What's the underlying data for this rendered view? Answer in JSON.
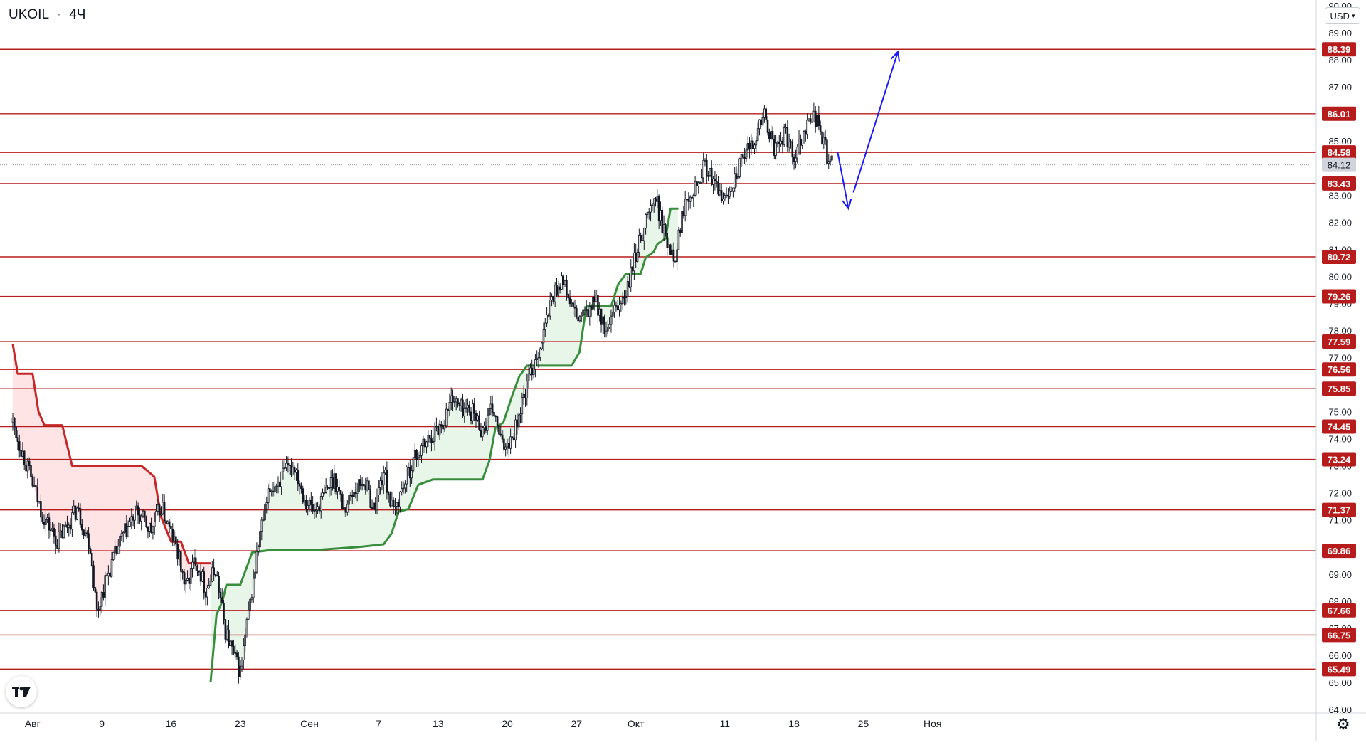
{
  "header": {
    "symbol": "UKOIL",
    "interval": "4Ч",
    "currency": "USD"
  },
  "icons": {
    "logo": "tradingview-logo-icon",
    "settings": "gear-icon",
    "currency_dropdown": "chevron-down-icon"
  },
  "colors": {
    "level_line": "#b71c1c",
    "level_badge": "#b71c1c",
    "supertrend_up": "#388e3c",
    "supertrend_down": "#c62828",
    "fill_up": "#e8f5e9",
    "fill_down": "#ffe4e6",
    "arrow": "#1a1aff",
    "candle": "#131722",
    "current_price_badge": "#d1d4dc"
  },
  "chart_data": {
    "type": "candlestick",
    "title": "UKOIL · 4Ч",
    "y_axis": {
      "range": [
        64.0,
        90.0
      ],
      "ticks": [
        "90.00",
        "89.00",
        "88.00",
        "87.00",
        "86.00",
        "85.00",
        "83.00",
        "82.00",
        "81.00",
        "80.00",
        "79.00",
        "78.00",
        "77.00",
        "76.00",
        "75.00",
        "74.00",
        "73.00",
        "72.00",
        "71.00",
        "70.00",
        "69.00",
        "68.00",
        "67.00",
        "66.00",
        "65.00",
        "64.00"
      ],
      "unit": "USD"
    },
    "x_axis": {
      "labels": [
        "Авг",
        "9",
        "16",
        "23",
        "Сен",
        "7",
        "13",
        "20",
        "27",
        "Окт",
        "11",
        "18",
        "25",
        "Ноя"
      ],
      "label_days": [
        2,
        9,
        16,
        23,
        30,
        37,
        43,
        50,
        57,
        63,
        72,
        79,
        86,
        93
      ]
    },
    "current_price": "84.12",
    "horizontal_levels": [
      "88.39",
      "86.01",
      "84.58",
      "83.43",
      "80.72",
      "79.26",
      "77.59",
      "76.56",
      "75.85",
      "74.45",
      "73.24",
      "71.37",
      "69.86",
      "67.66",
      "66.75",
      "65.49"
    ],
    "price_path": [
      [
        0.0,
        74.6
      ],
      [
        1.5,
        72.9
      ],
      [
        3.0,
        71.2
      ],
      [
        4.5,
        70.2
      ],
      [
        6.5,
        71.4
      ],
      [
        7.8,
        70.1
      ],
      [
        8.5,
        67.6
      ],
      [
        9.5,
        68.9
      ],
      [
        11.0,
        70.3
      ],
      [
        12.5,
        71.3
      ],
      [
        14.0,
        70.6
      ],
      [
        15.0,
        71.5
      ],
      [
        16.5,
        70.0
      ],
      [
        17.5,
        68.5
      ],
      [
        18.5,
        69.6
      ],
      [
        19.5,
        68.4
      ],
      [
        20.5,
        69.2
      ],
      [
        21.5,
        66.9
      ],
      [
        22.5,
        65.8
      ],
      [
        23.0,
        65.4
      ],
      [
        24.0,
        67.9
      ],
      [
        25.0,
        70.5
      ],
      [
        26.0,
        72.1
      ],
      [
        27.5,
        72.7
      ],
      [
        28.5,
        73.0
      ],
      [
        29.5,
        71.8
      ],
      [
        30.5,
        71.3
      ],
      [
        31.5,
        71.9
      ],
      [
        32.5,
        72.6
      ],
      [
        33.5,
        71.4
      ],
      [
        34.5,
        72.1
      ],
      [
        35.5,
        72.5
      ],
      [
        36.5,
        71.4
      ],
      [
        37.5,
        72.8
      ],
      [
        38.5,
        71.2
      ],
      [
        39.5,
        72.3
      ],
      [
        40.5,
        73.2
      ],
      [
        41.5,
        73.7
      ],
      [
        42.5,
        74.2
      ],
      [
        43.5,
        74.6
      ],
      [
        44.5,
        75.6
      ],
      [
        45.0,
        75.2
      ],
      [
        46.5,
        75.0
      ],
      [
        47.5,
        74.3
      ],
      [
        48.5,
        75.1
      ],
      [
        49.5,
        73.7
      ],
      [
        50.5,
        74.1
      ],
      [
        51.5,
        75.3
      ],
      [
        52.5,
        76.6
      ],
      [
        53.5,
        77.6
      ],
      [
        54.5,
        79.2
      ],
      [
        55.5,
        79.9
      ],
      [
        56.0,
        79.4
      ],
      [
        57.0,
        78.4
      ],
      [
        58.0,
        78.6
      ],
      [
        59.0,
        79.1
      ],
      [
        60.0,
        77.8
      ],
      [
        61.0,
        78.8
      ],
      [
        62.0,
        79.3
      ],
      [
        63.0,
        80.8
      ],
      [
        64.0,
        82.1
      ],
      [
        65.0,
        82.9
      ],
      [
        66.0,
        81.4
      ],
      [
        67.0,
        80.8
      ],
      [
        68.0,
        82.9
      ],
      [
        69.0,
        83.4
      ],
      [
        70.0,
        84.1
      ],
      [
        71.0,
        83.3
      ],
      [
        72.0,
        82.8
      ],
      [
        73.0,
        83.7
      ],
      [
        74.0,
        84.4
      ],
      [
        75.0,
        85.1
      ],
      [
        76.0,
        86.0
      ],
      [
        77.0,
        84.6
      ],
      [
        78.0,
        85.3
      ],
      [
        79.0,
        84.5
      ],
      [
        80.0,
        85.4
      ],
      [
        81.0,
        86.0
      ],
      [
        81.8,
        85.2
      ],
      [
        82.5,
        84.3
      ],
      [
        83.0,
        84.1
      ]
    ],
    "supertrend": [
      {
        "trend": "down",
        "points": [
          [
            0.0,
            77.5
          ],
          [
            0.5,
            76.4
          ],
          [
            2.0,
            76.4
          ],
          [
            2.6,
            75.0
          ],
          [
            3.2,
            74.5
          ],
          [
            5.0,
            74.5
          ],
          [
            6.0,
            73.0
          ],
          [
            13.0,
            73.0
          ],
          [
            14.3,
            72.6
          ],
          [
            15.0,
            71.1
          ],
          [
            16.0,
            70.2
          ],
          [
            17.0,
            70.2
          ],
          [
            17.8,
            69.4
          ],
          [
            20.0,
            69.4
          ]
        ]
      },
      {
        "trend": "up",
        "points": [
          [
            20.0,
            65.0
          ],
          [
            20.6,
            67.5
          ],
          [
            21.2,
            68.0
          ],
          [
            21.6,
            68.6
          ],
          [
            23.0,
            68.6
          ],
          [
            24.2,
            69.8
          ],
          [
            26.3,
            69.9
          ],
          [
            31.0,
            69.9
          ],
          [
            35.0,
            70.0
          ],
          [
            37.5,
            70.1
          ],
          [
            38.3,
            70.5
          ],
          [
            39.0,
            71.3
          ],
          [
            40.0,
            71.4
          ],
          [
            41.0,
            72.3
          ],
          [
            42.5,
            72.5
          ],
          [
            47.5,
            72.5
          ],
          [
            48.2,
            73.2
          ],
          [
            48.8,
            74.4
          ],
          [
            49.6,
            74.6
          ],
          [
            50.5,
            75.6
          ],
          [
            51.2,
            76.3
          ],
          [
            52.0,
            76.7
          ],
          [
            56.5,
            76.7
          ],
          [
            57.3,
            77.2
          ],
          [
            58.0,
            78.9
          ],
          [
            60.5,
            78.9
          ],
          [
            61.2,
            79.7
          ],
          [
            62.0,
            80.1
          ],
          [
            63.5,
            80.1
          ],
          [
            64.0,
            80.7
          ],
          [
            64.8,
            80.9
          ],
          [
            65.2,
            81.2
          ],
          [
            66.0,
            81.4
          ],
          [
            66.5,
            82.5
          ],
          [
            67.3,
            82.5
          ]
        ]
      }
    ],
    "projection_arrows": [
      {
        "from": [
          83.4,
          84.6
        ],
        "to": [
          84.5,
          82.5
        ]
      },
      {
        "from": [
          85.0,
          83.1
        ],
        "to": [
          89.5,
          88.3
        ]
      }
    ],
    "grid": false,
    "legend": "top-left"
  }
}
